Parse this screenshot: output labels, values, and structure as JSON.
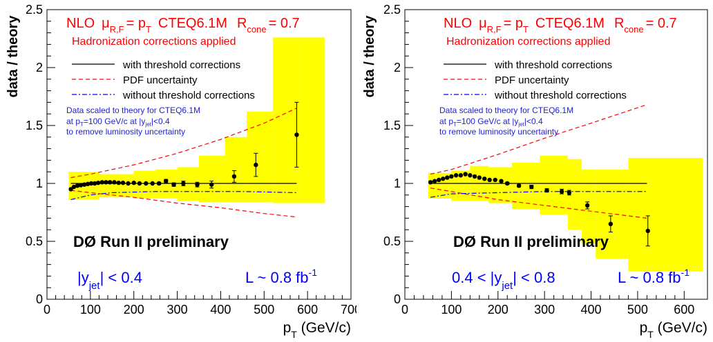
{
  "colors": {
    "band": "#ffff00",
    "red": "#ff0000",
    "blue": "#0000ff",
    "text_blue": "#2020d0",
    "black": "#000000"
  },
  "chart_data": [
    {
      "type": "scatter",
      "title_line": {
        "prefix": "NLO",
        "mu_letter": "μ",
        "mu_sub": "R,F",
        "eq": "= p",
        "pt_sub": "T",
        "pdf": "CTEQ6.1M",
        "r_letter": "R",
        "r_sub": "cone",
        "r_val": "= 0.7"
      },
      "hadronization": "Hadronization corrections applied",
      "legend": [
        {
          "label": "with threshold corrections",
          "style": "solid",
          "color": "#000000"
        },
        {
          "label": "PDF uncertainty",
          "style": "dashed",
          "color": "#ff0000"
        },
        {
          "label": "without threshold corrections",
          "style": "dashdot",
          "color": "#0000ff"
        }
      ],
      "note": {
        "line1": "Data scaled to theory for CTEQ6.1M",
        "line2_a": "at p",
        "line2_sub1": "T",
        "line2_b": "=100 GeV/c at |y",
        "line2_sub2": "jet",
        "line2_c": "|<0.4",
        "line3": "to remove luminosity uncertainty"
      },
      "experiment": "DØ Run II preliminary",
      "rapidity": {
        "pre": "|y",
        "sub": "jet",
        "post": "| < 0.4"
      },
      "luminosity": {
        "text": "L ~ 0.8 fb",
        "sup": "-1"
      },
      "xlabel": {
        "p": "p",
        "sub": "T",
        "unit": " (GeV/c)"
      },
      "ylabel": "data / theory",
      "xlim": [
        0,
        700
      ],
      "ylim": [
        0,
        2.5
      ],
      "xticks": [
        0,
        100,
        200,
        300,
        400,
        500,
        600,
        700
      ],
      "xtick_labels": [
        "0",
        "100",
        "200",
        "300",
        "400",
        "500",
        "600",
        "700"
      ],
      "yticks": [
        0,
        0.5,
        1,
        1.5,
        2,
        2.5
      ],
      "ytick_labels": [
        "0",
        "0.5",
        "1",
        "1.5",
        "2",
        "2.5"
      ],
      "points": [
        {
          "x": 55,
          "y": 0.95,
          "err": 0
        },
        {
          "x": 62,
          "y": 0.97,
          "err": 0
        },
        {
          "x": 70,
          "y": 0.98,
          "err": 0
        },
        {
          "x": 78,
          "y": 0.985,
          "err": 0
        },
        {
          "x": 86,
          "y": 0.99,
          "err": 0
        },
        {
          "x": 94,
          "y": 0.995,
          "err": 0
        },
        {
          "x": 102,
          "y": 1.0,
          "err": 0
        },
        {
          "x": 110,
          "y": 1.0,
          "err": 0
        },
        {
          "x": 118,
          "y": 1.005,
          "err": 0
        },
        {
          "x": 127,
          "y": 1.01,
          "err": 0
        },
        {
          "x": 136,
          "y": 1.01,
          "err": 0
        },
        {
          "x": 145,
          "y": 1.01,
          "err": 0
        },
        {
          "x": 155,
          "y": 1.01,
          "err": 0
        },
        {
          "x": 165,
          "y": 1.005,
          "err": 0
        },
        {
          "x": 175,
          "y": 1.005,
          "err": 0
        },
        {
          "x": 187,
          "y": 1.0,
          "err": 0
        },
        {
          "x": 200,
          "y": 1.005,
          "err": 0
        },
        {
          "x": 213,
          "y": 1.0,
          "err": 0
        },
        {
          "x": 228,
          "y": 1.0,
          "err": 0
        },
        {
          "x": 243,
          "y": 1.0,
          "err": 0
        },
        {
          "x": 258,
          "y": 1.0,
          "err": 0.01
        },
        {
          "x": 274,
          "y": 1.02,
          "err": 0.015
        },
        {
          "x": 292,
          "y": 0.99,
          "err": 0.015
        },
        {
          "x": 314,
          "y": 1.0,
          "err": 0.02
        },
        {
          "x": 346,
          "y": 0.99,
          "err": 0.02
        },
        {
          "x": 379,
          "y": 0.99,
          "err": 0.03
        },
        {
          "x": 431,
          "y": 1.06,
          "err": 0.05
        },
        {
          "x": 481,
          "y": 1.16,
          "err": 0.1
        },
        {
          "x": 575,
          "y": 1.42,
          "err": 0.28
        }
      ],
      "theory_band": [
        {
          "x0": 50,
          "x1": 120,
          "lo": 0.86,
          "hi": 1.1
        },
        {
          "x0": 120,
          "x1": 200,
          "lo": 0.88,
          "hi": 1.08
        },
        {
          "x0": 200,
          "x1": 250,
          "lo": 0.87,
          "hi": 1.11
        },
        {
          "x0": 250,
          "x1": 300,
          "lo": 0.87,
          "hi": 1.12
        },
        {
          "x0": 300,
          "x1": 350,
          "lo": 0.85,
          "hi": 1.14
        },
        {
          "x0": 350,
          "x1": 410,
          "lo": 0.84,
          "hi": 1.24
        },
        {
          "x0": 410,
          "x1": 460,
          "lo": 0.84,
          "hi": 1.4
        },
        {
          "x0": 460,
          "x1": 520,
          "lo": 0.84,
          "hi": 1.62
        },
        {
          "x0": 520,
          "x1": 580,
          "lo": 0.83,
          "hi": 2.26
        },
        {
          "x0": 580,
          "x1": 640,
          "lo": 0.83,
          "hi": 2.26
        }
      ],
      "pdf_upper": [
        [
          55,
          1.05
        ],
        [
          100,
          1.08
        ],
        [
          200,
          1.16
        ],
        [
          300,
          1.26
        ],
        [
          400,
          1.38
        ],
        [
          500,
          1.52
        ],
        [
          575,
          1.65
        ]
      ],
      "pdf_lower": [
        [
          55,
          0.94
        ],
        [
          100,
          0.92
        ],
        [
          200,
          0.88
        ],
        [
          300,
          0.83
        ],
        [
          400,
          0.79
        ],
        [
          500,
          0.74
        ],
        [
          575,
          0.71
        ]
      ],
      "threshold_line": [
        [
          55,
          1.0
        ],
        [
          575,
          1.0
        ]
      ],
      "no_threshold_line": [
        [
          55,
          0.86
        ],
        [
          100,
          0.9
        ],
        [
          150,
          0.92
        ],
        [
          250,
          0.93
        ],
        [
          350,
          0.93
        ],
        [
          450,
          0.93
        ],
        [
          575,
          0.92
        ]
      ]
    },
    {
      "type": "scatter",
      "title_line": {
        "prefix": "NLO",
        "mu_letter": "μ",
        "mu_sub": "R,F",
        "eq": "= p",
        "pt_sub": "T",
        "pdf": "CTEQ6.1M",
        "r_letter": "R",
        "r_sub": "cone",
        "r_val": "= 0.7"
      },
      "hadronization": "Hadronization corrections applied",
      "legend": [
        {
          "label": "with threshold corrections",
          "style": "solid",
          "color": "#000000"
        },
        {
          "label": "PDF uncertainty",
          "style": "dashed",
          "color": "#ff0000"
        },
        {
          "label": "without threshold corrections",
          "style": "dashdot",
          "color": "#0000ff"
        }
      ],
      "note": {
        "line1": "Data scaled to theory for CTEQ6.1M",
        "line2_a": "at p",
        "line2_sub1": "T",
        "line2_b": "=100 GeV/c at |y",
        "line2_sub2": "jet",
        "line2_c": "|<0.4",
        "line3": "to remove luminosity uncertainty"
      },
      "experiment": "DØ Run II preliminary",
      "rapidity": {
        "pre": "0.4 < |y",
        "sub": "jet",
        "post": "| < 0.8"
      },
      "luminosity": {
        "text": "L ~ 0.8 fb",
        "sup": "-1"
      },
      "xlabel": {
        "p": "p",
        "sub": "T",
        "unit": " (GeV/c)"
      },
      "ylabel": "data / theory",
      "xlim": [
        0,
        650
      ],
      "ylim": [
        0,
        2.5
      ],
      "xticks": [
        0,
        100,
        200,
        300,
        400,
        500,
        600
      ],
      "xtick_labels": [
        "0",
        "100",
        "200",
        "300",
        "400",
        "500",
        "600"
      ],
      "yticks": [
        0,
        0.5,
        1,
        1.5,
        2,
        2.5
      ],
      "ytick_labels": [
        "0",
        "0.5",
        "1",
        "1.5",
        "2",
        "2.5"
      ],
      "points": [
        {
          "x": 55,
          "y": 1.01,
          "err": 0
        },
        {
          "x": 64,
          "y": 1.02,
          "err": 0
        },
        {
          "x": 73,
          "y": 1.03,
          "err": 0
        },
        {
          "x": 82,
          "y": 1.04,
          "err": 0
        },
        {
          "x": 91,
          "y": 1.05,
          "err": 0
        },
        {
          "x": 100,
          "y": 1.06,
          "err": 0
        },
        {
          "x": 110,
          "y": 1.07,
          "err": 0
        },
        {
          "x": 120,
          "y": 1.07,
          "err": 0
        },
        {
          "x": 130,
          "y": 1.08,
          "err": 0
        },
        {
          "x": 140,
          "y": 1.07,
          "err": 0
        },
        {
          "x": 150,
          "y": 1.06,
          "err": 0
        },
        {
          "x": 160,
          "y": 1.05,
          "err": 0
        },
        {
          "x": 171,
          "y": 1.04,
          "err": 0
        },
        {
          "x": 182,
          "y": 1.03,
          "err": 0
        },
        {
          "x": 194,
          "y": 1.03,
          "err": 0
        },
        {
          "x": 207,
          "y": 1.02,
          "err": 0
        },
        {
          "x": 220,
          "y": 1.0,
          "err": 0.01
        },
        {
          "x": 245,
          "y": 0.98,
          "err": 0.01
        },
        {
          "x": 272,
          "y": 0.97,
          "err": 0.015
        },
        {
          "x": 305,
          "y": 0.94,
          "err": 0.015
        },
        {
          "x": 337,
          "y": 0.93,
          "err": 0.02
        },
        {
          "x": 353,
          "y": 0.92,
          "err": 0.02
        },
        {
          "x": 392,
          "y": 0.81,
          "err": 0.03
        },
        {
          "x": 442,
          "y": 0.65,
          "err": 0.07
        },
        {
          "x": 522,
          "y": 0.59,
          "err": 0.13
        }
      ],
      "theory_band": [
        {
          "x0": 50,
          "x1": 100,
          "lo": 0.87,
          "hi": 1.09
        },
        {
          "x0": 100,
          "x1": 140,
          "lo": 0.85,
          "hi": 1.11
        },
        {
          "x0": 140,
          "x1": 180,
          "lo": 0.85,
          "hi": 1.15
        },
        {
          "x0": 180,
          "x1": 230,
          "lo": 0.83,
          "hi": 1.14
        },
        {
          "x0": 230,
          "x1": 290,
          "lo": 0.78,
          "hi": 1.18
        },
        {
          "x0": 290,
          "x1": 350,
          "lo": 0.73,
          "hi": 1.24
        },
        {
          "x0": 350,
          "x1": 380,
          "lo": 0.6,
          "hi": 1.21
        },
        {
          "x0": 380,
          "x1": 410,
          "lo": 0.48,
          "hi": 1.12
        },
        {
          "x0": 410,
          "x1": 480,
          "lo": 0.35,
          "hi": 1.12
        },
        {
          "x0": 480,
          "x1": 640,
          "lo": 0.24,
          "hi": 1.22
        }
      ],
      "pdf_upper": [
        [
          55,
          1.08
        ],
        [
          100,
          1.12
        ],
        [
          200,
          1.25
        ],
        [
          300,
          1.39
        ],
        [
          400,
          1.52
        ],
        [
          520,
          1.68
        ]
      ],
      "pdf_lower": [
        [
          55,
          0.96
        ],
        [
          100,
          0.93
        ],
        [
          200,
          0.86
        ],
        [
          300,
          0.81
        ],
        [
          400,
          0.76
        ],
        [
          520,
          0.7
        ]
      ],
      "threshold_line": [
        [
          55,
          1.0
        ],
        [
          520,
          1.0
        ]
      ],
      "no_threshold_line": [
        [
          55,
          0.88
        ],
        [
          100,
          0.91
        ],
        [
          200,
          0.92
        ],
        [
          300,
          0.93
        ],
        [
          400,
          0.93
        ],
        [
          520,
          0.93
        ]
      ]
    }
  ]
}
